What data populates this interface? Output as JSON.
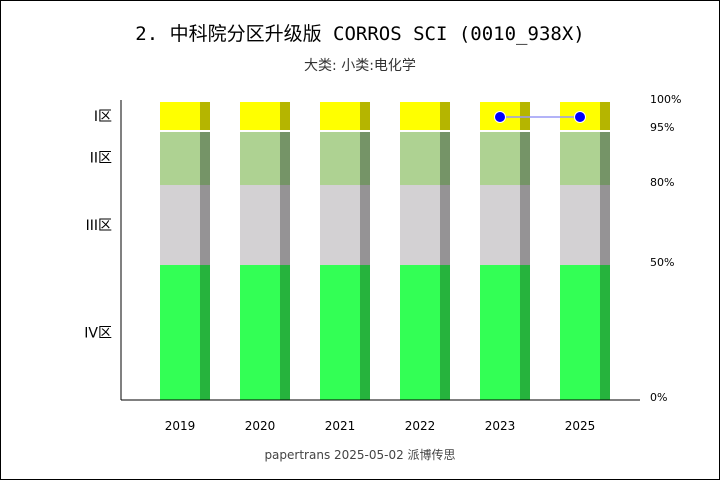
{
  "chart_data": {
    "type": "bar",
    "stacked": true,
    "title": "2. 中科院分区升级版 CORROS SCI (0010_938X)",
    "subtitle": "大类:  小类:电化学",
    "categories": [
      "2019",
      "2020",
      "2021",
      "2022",
      "2023",
      "2025"
    ],
    "zones": [
      {
        "label": "IV区",
        "from": 0,
        "to": 50,
        "color": "#33ff55",
        "side_color": "#26b33d"
      },
      {
        "label": "III区",
        "from": 50,
        "to": 80,
        "color": "#d3d1d3",
        "side_color": "#959395"
      },
      {
        "label": "II区",
        "from": 80,
        "to": 95,
        "color": "#aed292",
        "side_color": "#759467"
      },
      {
        "label": "I区",
        "from": 95,
        "to": 100,
        "color": "#ffff00",
        "side_color": "#b5b500"
      }
    ],
    "right_ticks": [
      "0%",
      "50%",
      "80%",
      "95%",
      "100%"
    ],
    "markers": [
      {
        "category": "2023",
        "zone": "I区"
      },
      {
        "category": "2025",
        "zone": "I区"
      }
    ],
    "marker_color": "#0000ff",
    "line_color": "#9a9af5",
    "grid": false
  },
  "footer": "papertrans 2025-05-02 派博传思"
}
